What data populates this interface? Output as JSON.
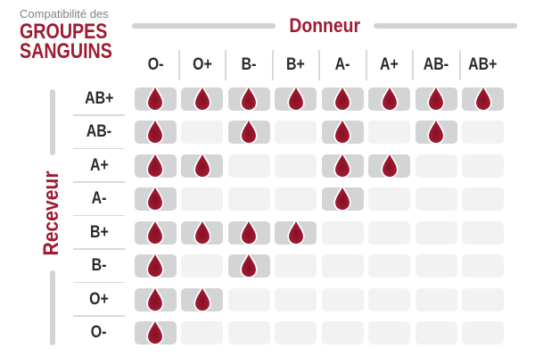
{
  "title": {
    "kicker": "Compatibilité des",
    "line1": "GROUPES",
    "line2": "SANGUINS"
  },
  "axes": {
    "donor": "Donneur",
    "receiver": "Receveur"
  },
  "colors": {
    "accent_red": "#9e1b32",
    "drop_red": "#a41e38",
    "drop_red_dark": "#871022",
    "cell_compatible": "#d2d4d5",
    "cell_incompatible": "#f2f2f3",
    "divider_gray": "#d8d9da",
    "axis_line_gray": "#d1d3d4",
    "kicker_gray": "#808285",
    "label_dark": "#2b2a29"
  },
  "icons": {
    "compatible_marker": "blood-drop-icon"
  },
  "chart_data": {
    "type": "heatmap",
    "title": "Compatibilité des GROUPES SANGUINS",
    "x_axis_label": "Donneur",
    "y_axis_label": "Receveur",
    "columns": [
      "O-",
      "O+",
      "B-",
      "B+",
      "A-",
      "A+",
      "AB-",
      "AB+"
    ],
    "rows": [
      "AB+",
      "AB-",
      "A+",
      "A-",
      "B+",
      "B-",
      "O+",
      "O-"
    ],
    "matrix": [
      [
        1,
        1,
        1,
        1,
        1,
        1,
        1,
        1
      ],
      [
        1,
        0,
        1,
        0,
        1,
        0,
        1,
        0
      ],
      [
        1,
        1,
        0,
        0,
        1,
        1,
        0,
        0
      ],
      [
        1,
        0,
        0,
        0,
        1,
        0,
        0,
        0
      ],
      [
        1,
        1,
        1,
        1,
        0,
        0,
        0,
        0
      ],
      [
        1,
        0,
        1,
        0,
        0,
        0,
        0,
        0
      ],
      [
        1,
        1,
        0,
        0,
        0,
        0,
        0,
        0
      ],
      [
        1,
        0,
        0,
        0,
        0,
        0,
        0,
        0
      ]
    ],
    "cell_marker": "blood-drop",
    "value_meaning": {
      "1": "compatible (goutte de sang)",
      "0": "incompatible (case vide)"
    }
  }
}
